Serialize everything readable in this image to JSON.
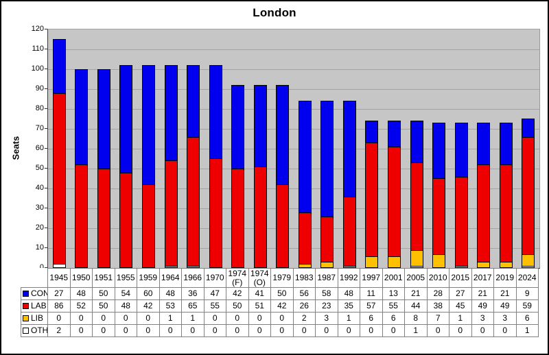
{
  "title": "London",
  "ylabel": "Seats",
  "chart_data": {
    "type": "bar",
    "stacked": true,
    "title": "London",
    "xlabel": "",
    "ylabel": "Seats",
    "ylim": [
      0,
      120
    ],
    "ytick_step": 10,
    "grid": true,
    "plot_bg": "#C6C6C6",
    "gridline_color": "#A3A3A3",
    "legend_position": "table-left",
    "categories": [
      "1945",
      "1950",
      "1951",
      "1955",
      "1959",
      "1964",
      "1966",
      "1970",
      "1974 (F)",
      "1974 (O)",
      "1979",
      "1983",
      "1987",
      "1992",
      "1997",
      "2001",
      "2005",
      "2010",
      "2015",
      "2017",
      "2019",
      "2024"
    ],
    "series": [
      {
        "name": "CON",
        "color": "#0000EE",
        "values": [
          27,
          48,
          50,
          54,
          60,
          48,
          36,
          47,
          42,
          41,
          50,
          56,
          58,
          48,
          11,
          13,
          21,
          28,
          27,
          21,
          21,
          9
        ]
      },
      {
        "name": "LAB",
        "color": "#EE0000",
        "values": [
          86,
          52,
          50,
          48,
          42,
          53,
          65,
          55,
          50,
          51,
          42,
          26,
          23,
          35,
          57,
          55,
          44,
          38,
          45,
          49,
          49,
          59
        ]
      },
      {
        "name": "LIB",
        "color": "#FFC000",
        "values": [
          0,
          0,
          0,
          0,
          0,
          1,
          1,
          0,
          0,
          0,
          0,
          2,
          3,
          1,
          6,
          6,
          8,
          7,
          1,
          3,
          3,
          6
        ]
      },
      {
        "name": "OTH",
        "color": "#FFFFFF",
        "values": [
          2,
          0,
          0,
          0,
          0,
          0,
          0,
          0,
          0,
          0,
          0,
          0,
          0,
          0,
          0,
          0,
          1,
          0,
          0,
          0,
          0,
          1
        ]
      }
    ],
    "stack_order_bottom_to_top": [
      "OTH",
      "LIB",
      "LAB",
      "CON"
    ]
  },
  "colors": {
    "frame_border": "#000000",
    "table_border": "#808080",
    "axis": "#000000"
  }
}
